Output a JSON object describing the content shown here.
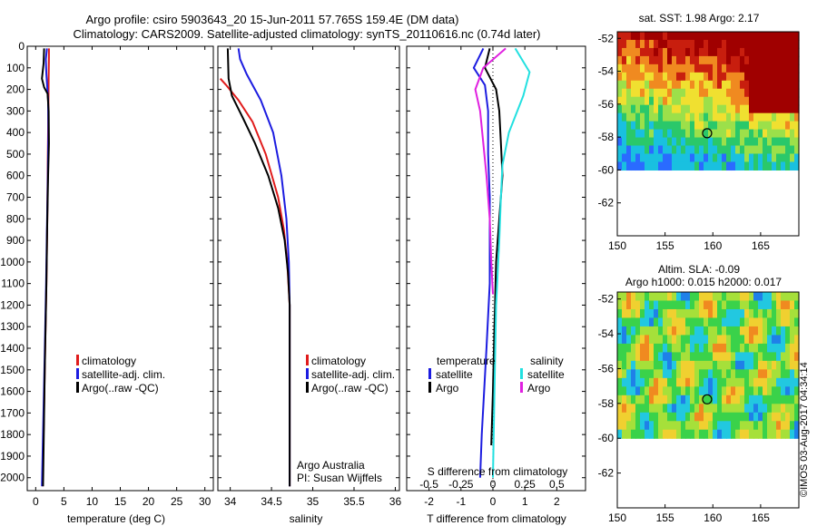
{
  "header": {
    "title_line1": "Argo profile: csiro 5903643_20 15-Jun-2011 57.765S 159.4E (DM data)",
    "title_line2": "Climatology: CARS2009. Satellite-adjusted climatology: synTS_20110616.nc (0.74d later)"
  },
  "colors": {
    "climatology": "#e01b1b",
    "satellite": "#1c1ce0",
    "argo": "#000000",
    "sat_salinity": "#22e0e0",
    "argo_salinity": "#e020e0"
  },
  "footer": {
    "vertical_stamp": "©IMOS 03-Aug-2017 04:34:14",
    "owner_line1": "Argo Australia",
    "owner_line2": "PI: Susan Wijffels"
  },
  "legend": {
    "climatology": "climatology",
    "satellite_adj": "satellite-adj. clim.",
    "argo_raw": "Argo(..raw -QC)",
    "temperature_head": "temperature",
    "salinity_head": "salinity",
    "satellite": "satellite",
    "argo": "Argo"
  },
  "panel_titles": {
    "sst": "sat. SST: 1.98 Argo: 2.17",
    "sla_line1": "Altim. SLA: -0.09",
    "sla_line2": "Argo h1000: 0.015 h2000: 0.017"
  },
  "chart_data": [
    {
      "type": "line",
      "xlabel": "temperature (deg C)",
      "ylabel": "",
      "xlim": [
        -1.5,
        31.5
      ],
      "ylim": [
        2060,
        0
      ],
      "x_ticks": [
        0,
        5,
        10,
        15,
        20,
        25,
        30
      ],
      "y_ticks": [
        0,
        100,
        200,
        300,
        400,
        500,
        600,
        700,
        800,
        900,
        1000,
        1100,
        1200,
        1300,
        1400,
        1500,
        1600,
        1700,
        1800,
        1900,
        2000
      ],
      "series": [
        {
          "name": "climatology",
          "x": [
            2.35,
            2.35,
            2.3,
            2.25,
            2.15,
            2.05,
            1.9,
            1.6,
            1.4,
            1.2
          ],
          "y": [
            10,
            50,
            150,
            300,
            500,
            800,
            1100,
            1500,
            1800,
            2040
          ]
        },
        {
          "name": "satellite-adj. clim.",
          "x": [
            2.0,
            1.8,
            1.9,
            2.2,
            2.25,
            2.15,
            2.0,
            1.85,
            1.55,
            1.3,
            1.1
          ],
          "y": [
            10,
            60,
            130,
            250,
            400,
            600,
            850,
            1100,
            1500,
            1800,
            2040
          ]
        },
        {
          "name": "Argo(..raw -QC)",
          "x": [
            1.5,
            1.4,
            1.1,
            1.5,
            2.1,
            2.3,
            2.35,
            2.2,
            2.05,
            1.9,
            1.6,
            1.3
          ],
          "y": [
            10,
            80,
            150,
            190,
            220,
            300,
            450,
            600,
            800,
            1100,
            1500,
            2040
          ]
        }
      ]
    },
    {
      "type": "line",
      "xlabel": "salinity",
      "xlim": [
        33.85,
        36.05
      ],
      "ylim": [
        2060,
        0
      ],
      "x_ticks": [
        34,
        34.5,
        35,
        35.5,
        36
      ],
      "series": [
        {
          "name": "climatology",
          "x": [
            33.88,
            33.95,
            34.1,
            34.27,
            34.43,
            34.58,
            34.65,
            34.69,
            34.72,
            34.72,
            34.72
          ],
          "y": [
            150,
            180,
            250,
            350,
            500,
            700,
            850,
            1000,
            1200,
            1500,
            2040
          ]
        },
        {
          "name": "satellite-adj. clim.",
          "x": [
            34.1,
            34.12,
            34.2,
            34.37,
            34.52,
            34.62,
            34.68,
            34.71,
            34.72,
            34.72,
            34.72
          ],
          "y": [
            10,
            60,
            130,
            250,
            400,
            600,
            800,
            1000,
            1200,
            1500,
            2040
          ]
        },
        {
          "name": "Argo(..raw -QC)",
          "x": [
            33.97,
            33.98,
            34.02,
            34.15,
            34.3,
            34.46,
            34.58,
            34.66,
            34.7,
            34.72,
            34.72
          ],
          "y": [
            10,
            150,
            230,
            330,
            450,
            600,
            750,
            900,
            1050,
            1200,
            2040
          ]
        }
      ]
    },
    {
      "type": "line",
      "xlabel_top": "S difference from climatology",
      "xlabel": "T difference from climatology",
      "xlim": [
        -2.7,
        2.9
      ],
      "ylim": [
        2060,
        0
      ],
      "x_ticks": [
        -2,
        -1,
        0,
        1,
        2
      ],
      "x_ticks_top_values": [
        -0.5,
        -0.25,
        0,
        0.25,
        0.5
      ],
      "x_ticks_top": [
        "-0.5",
        "-0.25",
        "0",
        "0.25",
        "0.5"
      ],
      "series": [
        {
          "name": "temperature satellite",
          "x": [
            -0.3,
            -0.6,
            -0.25,
            -0.15,
            -0.15,
            -0.1,
            -0.1,
            -0.1,
            -0.2,
            -0.35,
            -0.4
          ],
          "y": [
            10,
            100,
            180,
            300,
            500,
            700,
            900,
            1100,
            1400,
            1800,
            2000
          ]
        },
        {
          "name": "temperature Argo",
          "x": [
            -0.1,
            -0.25,
            0.1,
            0.2,
            0.25,
            0.3,
            0.2,
            0.1,
            0.05,
            0.0,
            -0.05
          ],
          "y": [
            10,
            100,
            200,
            300,
            450,
            600,
            800,
            1000,
            1300,
            1600,
            1850
          ]
        },
        {
          "name": "salinity satellite",
          "x": [
            0.7,
            1.15,
            0.95,
            0.5,
            0.3,
            0.25,
            0.2,
            0.1,
            0.05,
            0.0
          ],
          "y": [
            10,
            120,
            230,
            400,
            550,
            700,
            900,
            1200,
            1600,
            2000
          ]
        },
        {
          "name": "salinity Argo",
          "x": [
            0.4,
            -0.3,
            -0.55,
            -0.4,
            -0.3,
            -0.2,
            -0.1,
            -0.05,
            0.0
          ],
          "y": [
            10,
            100,
            200,
            300,
            450,
            600,
            800,
            1000,
            1150
          ]
        }
      ]
    },
    {
      "type": "heatmap",
      "title": "sat. SST: 1.98 Argo: 2.17",
      "xlim": [
        150,
        169
      ],
      "ylim": [
        -64,
        -51.6
      ],
      "x_ticks": [
        150,
        155,
        160,
        165
      ],
      "y_ticks": [
        -52,
        -54,
        -56,
        -58,
        -60,
        -62
      ],
      "marker": {
        "lon": 159.4,
        "lat": -57.765
      },
      "data_lat_range": [
        -60,
        -51.6
      ],
      "palette": [
        "#2a6bff",
        "#19c0e0",
        "#2ac86a",
        "#9ce04a",
        "#f0e030",
        "#f08a20",
        "#c81e0e",
        "#a00000"
      ]
    },
    {
      "type": "heatmap",
      "title": "Altim. SLA: -0.09",
      "xlim": [
        150,
        169
      ],
      "ylim": [
        -64,
        -51.6
      ],
      "x_ticks": [
        150,
        155,
        160,
        165
      ],
      "y_ticks": [
        -52,
        -54,
        -56,
        -58,
        -60,
        -62
      ],
      "marker": {
        "lon": 159.4,
        "lat": -57.765
      },
      "data_lat_range": [
        -60,
        -51.6
      ],
      "palette": [
        "#1a3ac0",
        "#1f80e8",
        "#22c8e0",
        "#3ad24a",
        "#a6e03a",
        "#f0d030",
        "#f08a20",
        "#c0200e"
      ]
    }
  ]
}
